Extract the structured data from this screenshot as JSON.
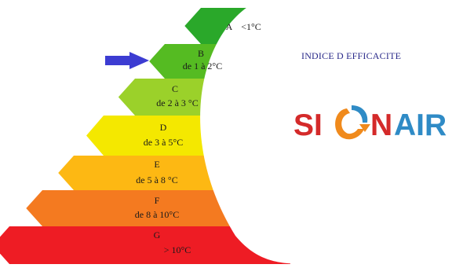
{
  "title": "INDICE D EFFICACITE",
  "bands": [
    {
      "letter": "A",
      "range": "<1°C",
      "color": "#2aa82a"
    },
    {
      "letter": "B",
      "range": "de 1 à 2°C",
      "color": "#55bb22"
    },
    {
      "letter": "C",
      "range": "de 2 à 3 °C",
      "color": "#9bd12a"
    },
    {
      "letter": "D",
      "range": "de 3 à 5°C",
      "color": "#f4e800"
    },
    {
      "letter": "E",
      "range": "de 5 à 8 °C",
      "color": "#fdb813"
    },
    {
      "letter": "F",
      "range": "de 8 à 10°C",
      "color": "#f47a20"
    },
    {
      "letter": "G",
      "range": "> 10°C",
      "color": "#ee1c24"
    }
  ],
  "selected_band": "B",
  "arrow_color": "#3c3cd2",
  "logo": {
    "part1": "SI",
    "part2": "N",
    "part3": "AIR",
    "color_red": "#d42a2a",
    "color_blue": "#2f8bc6",
    "swirl_orange": "#f08a1c",
    "swirl_blue": "#2f8bc6"
  }
}
